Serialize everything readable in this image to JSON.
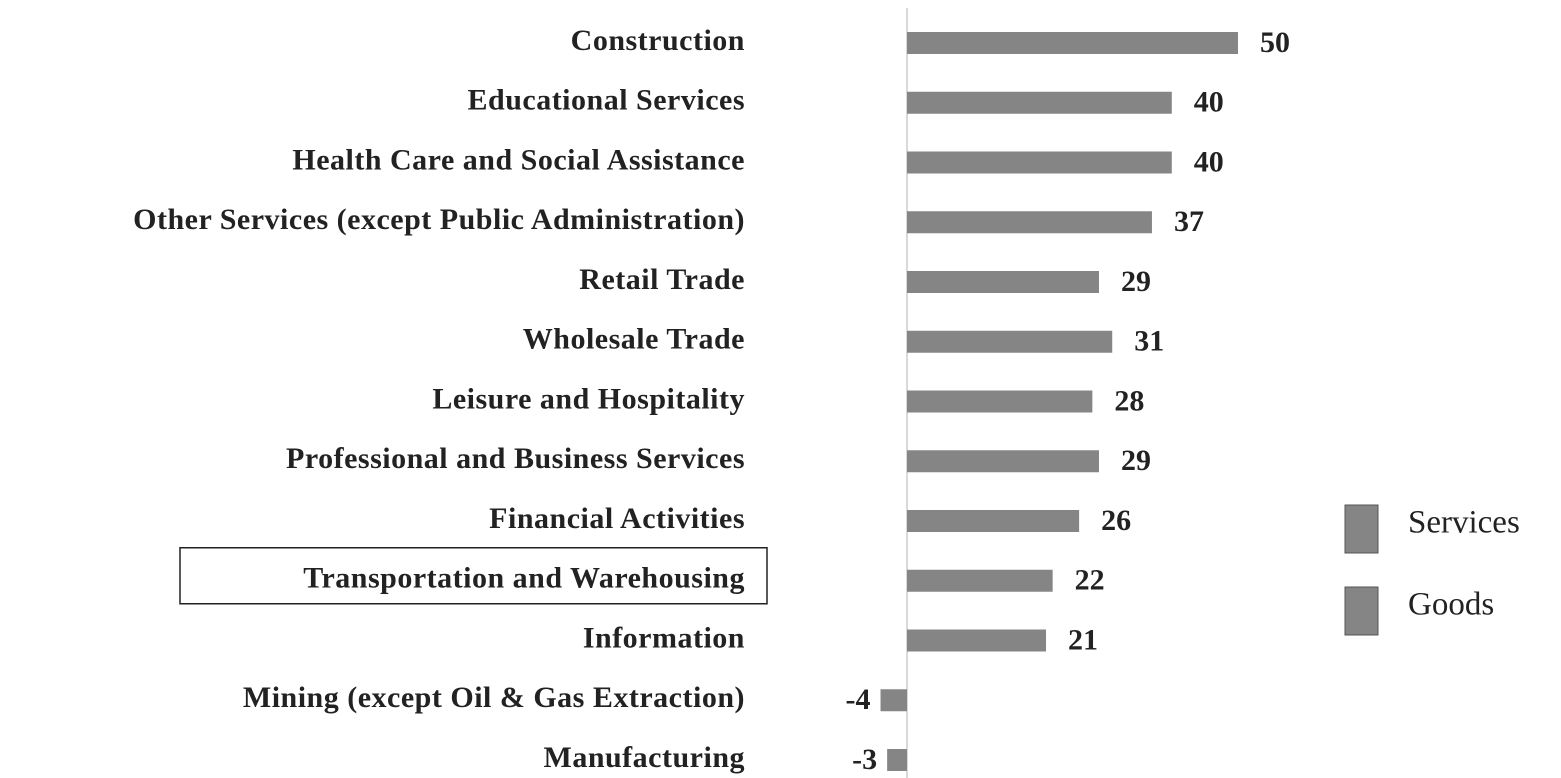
{
  "chart_data": {
    "type": "bar",
    "orientation": "horizontal",
    "categories": [
      "Construction",
      "Educational Services",
      "Health Care and Social Assistance",
      "Other Services (except Public Administration)",
      "Retail Trade",
      "Wholesale Trade",
      "Leisure and Hospitality",
      "Professional and Business Services",
      "Financial Activities",
      "Transportation and Warehousing",
      "Information",
      "Mining (except Oil & Gas Extraction)",
      "Manufacturing"
    ],
    "series": [
      {
        "name": "Services",
        "color": "#858585",
        "values": [
          null,
          40,
          40,
          37,
          29,
          31,
          28,
          29,
          26,
          22,
          21,
          null,
          null
        ]
      },
      {
        "name": "Goods",
        "color": "#858585",
        "values": [
          50,
          null,
          null,
          null,
          null,
          null,
          null,
          null,
          null,
          null,
          null,
          -4,
          -3
        ]
      }
    ],
    "highlight_index": 9
  }
}
